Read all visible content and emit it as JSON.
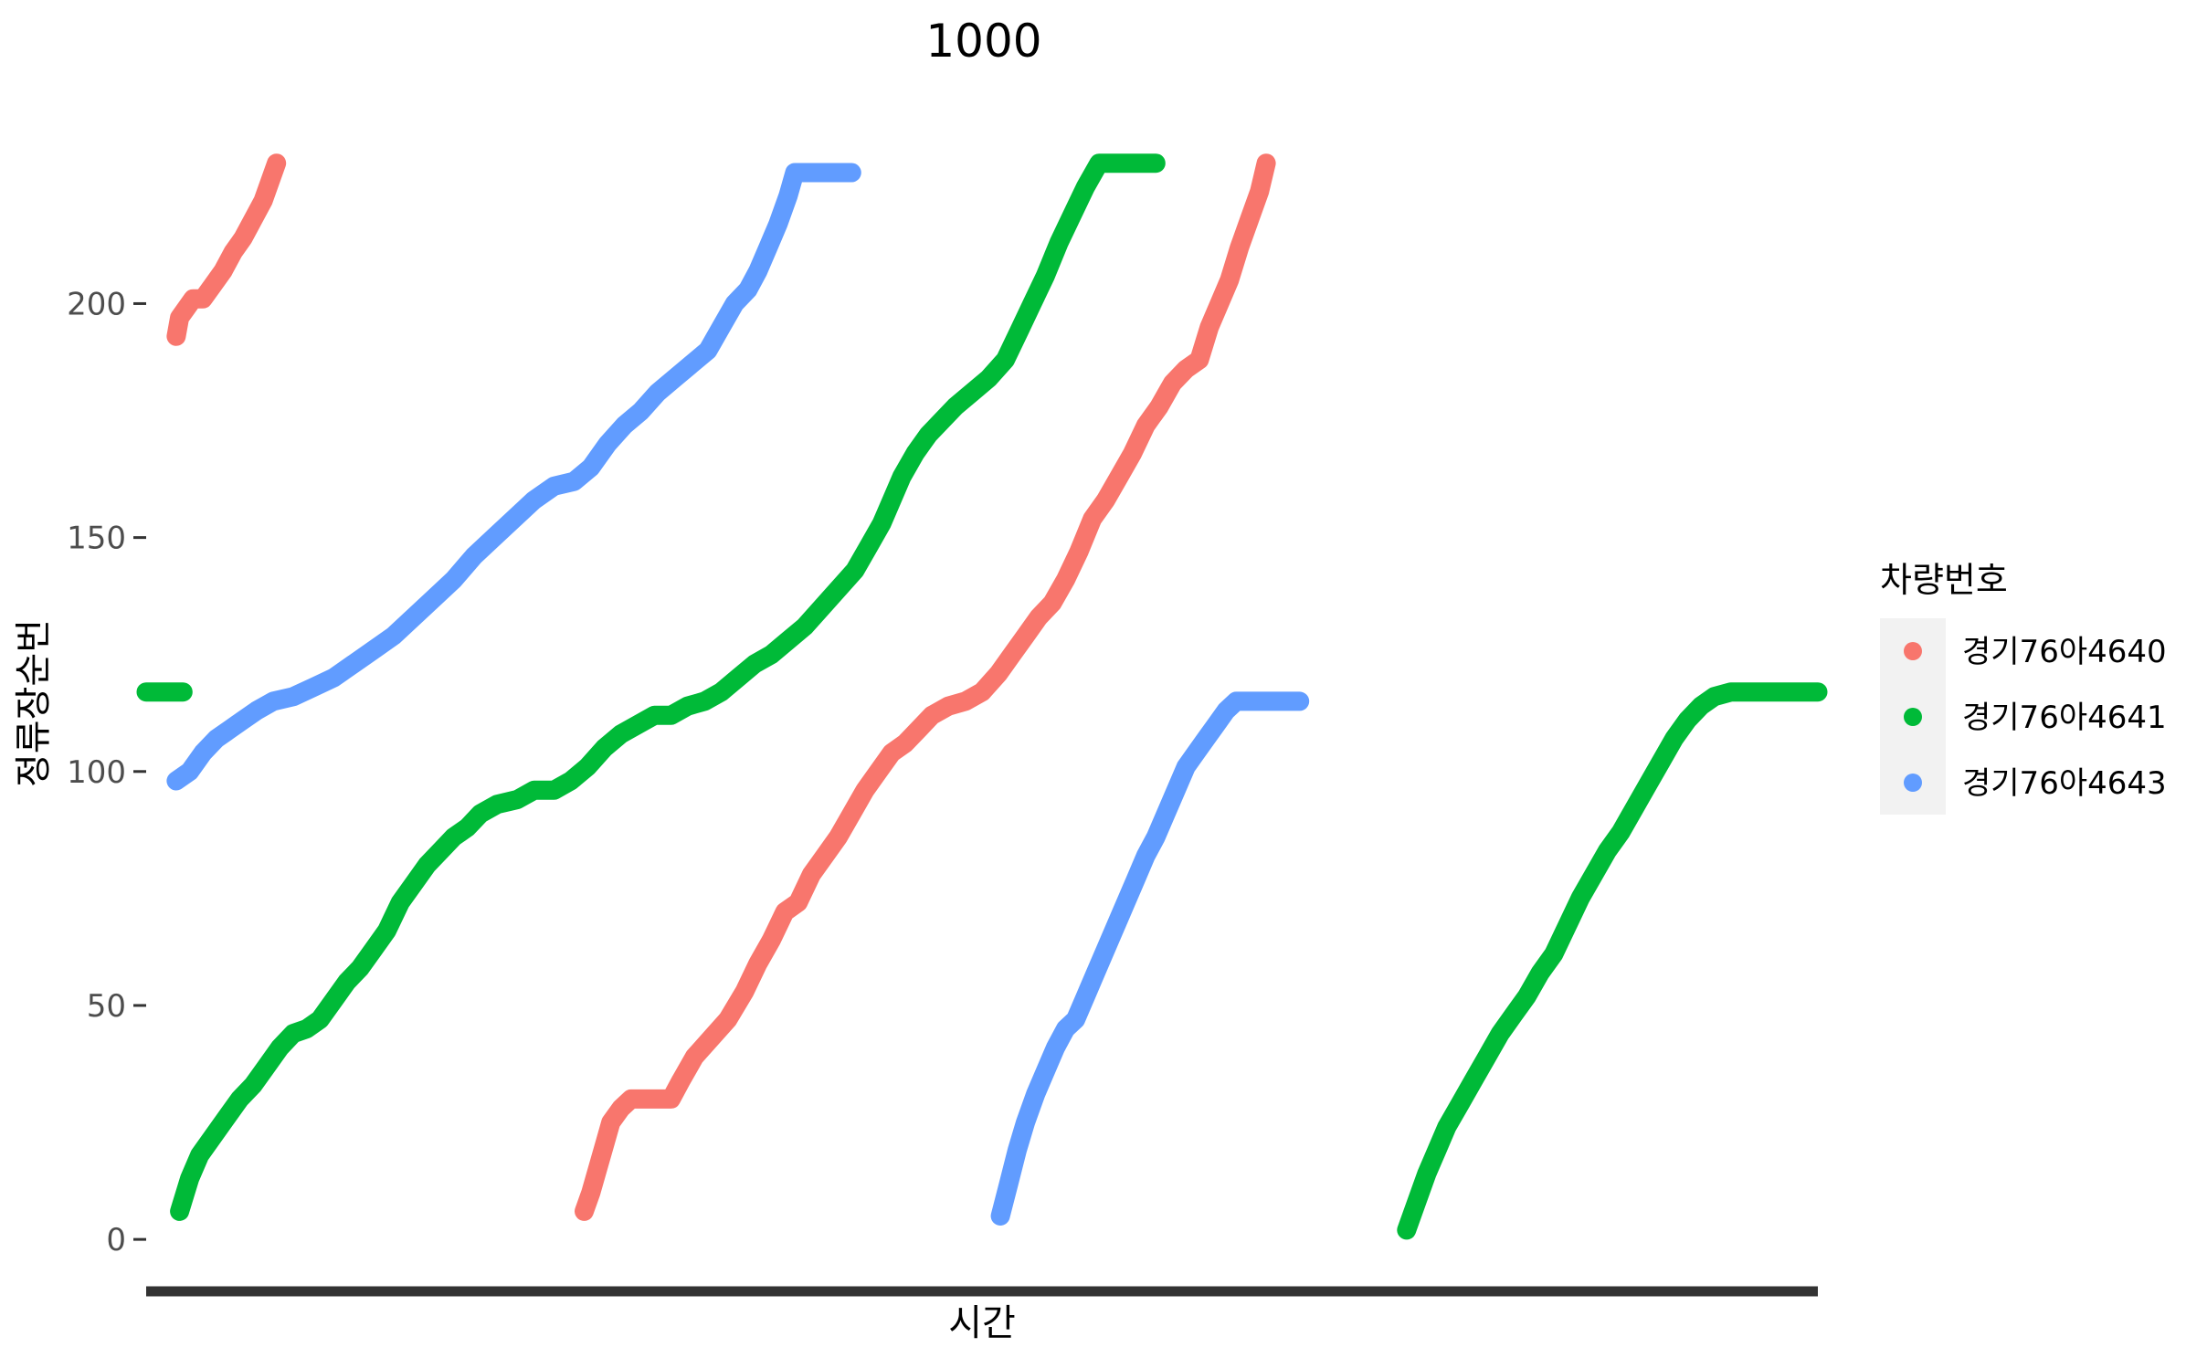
{
  "chart_data": {
    "type": "scatter",
    "title": "1000",
    "xlabel": "시간",
    "ylabel": "정류장순번",
    "x_ticks_visible": false,
    "xlim": [
      0,
      1000
    ],
    "ylim": [
      -7,
      236
    ],
    "y_ticks": [
      0,
      50,
      100,
      150,
      200
    ],
    "grid": false,
    "legend": {
      "title": "차량번호",
      "placement": "right"
    },
    "series": [
      {
        "name": "경기76아4640",
        "color": "#F8766D",
        "segments": [
          [
            [
              18,
              193
            ],
            [
              20,
              197
            ],
            [
              24,
              199
            ],
            [
              28,
              201
            ],
            [
              34,
              201
            ],
            [
              40,
              204
            ],
            [
              46,
              207
            ],
            [
              52,
              211
            ],
            [
              58,
              214
            ],
            [
              64,
              218
            ],
            [
              70,
              222
            ],
            [
              74,
              226
            ],
            [
              78,
              230
            ]
          ],
          [
            [
              262,
              6
            ],
            [
              266,
              10
            ],
            [
              270,
              15
            ],
            [
              274,
              20
            ],
            [
              278,
              25
            ],
            [
              284,
              28
            ],
            [
              290,
              30
            ],
            [
              300,
              30
            ],
            [
              314,
              30
            ],
            [
              320,
              34
            ],
            [
              328,
              39
            ],
            [
              338,
              43
            ],
            [
              348,
              47
            ],
            [
              358,
              53
            ],
            [
              366,
              59
            ],
            [
              374,
              64
            ],
            [
              382,
              70
            ],
            [
              390,
              72
            ],
            [
              398,
              78
            ],
            [
              406,
              82
            ],
            [
              414,
              86
            ],
            [
              422,
              91
            ],
            [
              430,
              96
            ],
            [
              438,
              100
            ],
            [
              446,
              104
            ],
            [
              454,
              106
            ],
            [
              462,
              109
            ],
            [
              470,
              112
            ],
            [
              480,
              114
            ],
            [
              490,
              115
            ],
            [
              500,
              117
            ],
            [
              510,
              121
            ],
            [
              518,
              125
            ],
            [
              526,
              129
            ],
            [
              534,
              133
            ],
            [
              542,
              136
            ],
            [
              550,
              141
            ],
            [
              558,
              147
            ],
            [
              566,
              154
            ],
            [
              574,
              158
            ],
            [
              582,
              163
            ],
            [
              590,
              168
            ],
            [
              598,
              174
            ],
            [
              606,
              178
            ],
            [
              614,
              183
            ],
            [
              622,
              186
            ],
            [
              630,
              188
            ],
            [
              636,
              195
            ],
            [
              642,
              200
            ],
            [
              648,
              205
            ],
            [
              654,
              212
            ],
            [
              660,
              218
            ],
            [
              666,
              224
            ],
            [
              670,
              230
            ]
          ]
        ]
      },
      {
        "name": "경기76아4641",
        "color": "#00BA38",
        "segments": [
          [
            [
              0,
              117
            ],
            [
              22,
              117
            ]
          ],
          [
            [
              20,
              6
            ],
            [
              26,
              13
            ],
            [
              32,
              18
            ],
            [
              40,
              22
            ],
            [
              48,
              26
            ],
            [
              56,
              30
            ],
            [
              64,
              33
            ],
            [
              72,
              37
            ],
            [
              80,
              41
            ],
            [
              88,
              44
            ],
            [
              96,
              45
            ],
            [
              104,
              47
            ],
            [
              112,
              51
            ],
            [
              120,
              55
            ],
            [
              128,
              58
            ],
            [
              136,
              62
            ],
            [
              144,
              66
            ],
            [
              152,
              72
            ],
            [
              160,
              76
            ],
            [
              168,
              80
            ],
            [
              176,
              83
            ],
            [
              184,
              86
            ],
            [
              192,
              88
            ],
            [
              200,
              91
            ],
            [
              210,
              93
            ],
            [
              222,
              94
            ],
            [
              232,
              96
            ],
            [
              244,
              96
            ],
            [
              254,
              98
            ],
            [
              264,
              101
            ],
            [
              274,
              105
            ],
            [
              284,
              108
            ],
            [
              294,
              110
            ],
            [
              304,
              112
            ],
            [
              314,
              112
            ],
            [
              324,
              114
            ],
            [
              334,
              115
            ],
            [
              344,
              117
            ],
            [
              354,
              120
            ],
            [
              364,
              123
            ],
            [
              374,
              125
            ],
            [
              384,
              128
            ],
            [
              394,
              131
            ],
            [
              404,
              135
            ],
            [
              414,
              139
            ],
            [
              424,
              143
            ],
            [
              432,
              148
            ],
            [
              440,
              153
            ],
            [
              446,
              158
            ],
            [
              452,
              163
            ],
            [
              460,
              168
            ],
            [
              468,
              172
            ],
            [
              476,
              175
            ],
            [
              484,
              178
            ],
            [
              494,
              181
            ],
            [
              504,
              184
            ],
            [
              514,
              188
            ],
            [
              522,
              194
            ],
            [
              530,
              200
            ],
            [
              538,
              206
            ],
            [
              546,
              213
            ],
            [
              554,
              219
            ],
            [
              562,
              225
            ],
            [
              570,
              230
            ],
            [
              588,
              230
            ],
            [
              604,
              230
            ]
          ],
          [
            [
              754,
              2
            ],
            [
              760,
              8
            ],
            [
              766,
              14
            ],
            [
              772,
              19
            ],
            [
              778,
              24
            ],
            [
              786,
              29
            ],
            [
              794,
              34
            ],
            [
              802,
              39
            ],
            [
              810,
              44
            ],
            [
              818,
              48
            ],
            [
              826,
              52
            ],
            [
              834,
              57
            ],
            [
              842,
              61
            ],
            [
              850,
              67
            ],
            [
              858,
              73
            ],
            [
              866,
              78
            ],
            [
              874,
              83
            ],
            [
              882,
              87
            ],
            [
              890,
              92
            ],
            [
              898,
              97
            ],
            [
              906,
              102
            ],
            [
              914,
              107
            ],
            [
              922,
              111
            ],
            [
              930,
              114
            ],
            [
              938,
              116
            ],
            [
              948,
              117
            ],
            [
              1000,
              117
            ]
          ]
        ]
      },
      {
        "name": "경기76아4643",
        "color": "#619CFF",
        "segments": [
          [
            [
              18,
              98
            ],
            [
              26,
              100
            ],
            [
              34,
              104
            ],
            [
              42,
              107
            ],
            [
              50,
              109
            ],
            [
              58,
              111
            ],
            [
              66,
              113
            ],
            [
              76,
              115
            ],
            [
              88,
              116
            ],
            [
              100,
              118
            ],
            [
              112,
              120
            ],
            [
              124,
              123
            ],
            [
              136,
              126
            ],
            [
              148,
              129
            ],
            [
              160,
              133
            ],
            [
              172,
              137
            ],
            [
              184,
              141
            ],
            [
              196,
              146
            ],
            [
              208,
              150
            ],
            [
              220,
              154
            ],
            [
              232,
              158
            ],
            [
              244,
              161
            ],
            [
              256,
              162
            ],
            [
              266,
              165
            ],
            [
              276,
              170
            ],
            [
              286,
              174
            ],
            [
              296,
              177
            ],
            [
              306,
              181
            ],
            [
              316,
              184
            ],
            [
              326,
              187
            ],
            [
              336,
              190
            ],
            [
              344,
              195
            ],
            [
              352,
              200
            ],
            [
              360,
              203
            ],
            [
              366,
              207
            ],
            [
              372,
              212
            ],
            [
              378,
              217
            ],
            [
              384,
              223
            ],
            [
              388,
              228
            ],
            [
              402,
              228
            ],
            [
              422,
              228
            ]
          ],
          [
            [
              511,
              5
            ],
            [
              516,
              12
            ],
            [
              521,
              19
            ],
            [
              526,
              25
            ],
            [
              532,
              31
            ],
            [
              538,
              36
            ],
            [
              544,
              41
            ],
            [
              550,
              45
            ],
            [
              556,
              47
            ],
            [
              562,
              52
            ],
            [
              568,
              57
            ],
            [
              574,
              62
            ],
            [
              580,
              67
            ],
            [
              586,
              72
            ],
            [
              592,
              77
            ],
            [
              598,
              82
            ],
            [
              604,
              86
            ],
            [
              610,
              91
            ],
            [
              616,
              96
            ],
            [
              622,
              101
            ],
            [
              628,
              104
            ],
            [
              634,
              107
            ],
            [
              640,
              110
            ],
            [
              646,
              113
            ],
            [
              652,
              115
            ],
            [
              668,
              115
            ],
            [
              690,
              115
            ]
          ]
        ]
      }
    ]
  }
}
